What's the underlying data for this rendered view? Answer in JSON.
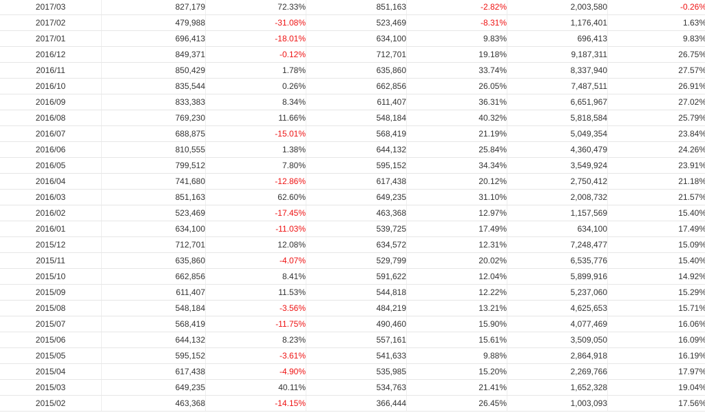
{
  "colors": {
    "negative": "#ee1111",
    "text": "#333333",
    "border": "#e6e6e6"
  },
  "rows": [
    [
      "2017/03",
      "827,179",
      "72.33%",
      "851,163",
      "-2.82%",
      "2,003,580",
      "-0.26%"
    ],
    [
      "2017/02",
      "479,988",
      "-31.08%",
      "523,469",
      "-8.31%",
      "1,176,401",
      "1.63%"
    ],
    [
      "2017/01",
      "696,413",
      "-18.01%",
      "634,100",
      "9.83%",
      "696,413",
      "9.83%"
    ],
    [
      "2016/12",
      "849,371",
      "-0.12%",
      "712,701",
      "19.18%",
      "9,187,311",
      "26.75%"
    ],
    [
      "2016/11",
      "850,429",
      "1.78%",
      "635,860",
      "33.74%",
      "8,337,940",
      "27.57%"
    ],
    [
      "2016/10",
      "835,544",
      "0.26%",
      "662,856",
      "26.05%",
      "7,487,511",
      "26.91%"
    ],
    [
      "2016/09",
      "833,383",
      "8.34%",
      "611,407",
      "36.31%",
      "6,651,967",
      "27.02%"
    ],
    [
      "2016/08",
      "769,230",
      "11.66%",
      "548,184",
      "40.32%",
      "5,818,584",
      "25.79%"
    ],
    [
      "2016/07",
      "688,875",
      "-15.01%",
      "568,419",
      "21.19%",
      "5,049,354",
      "23.84%"
    ],
    [
      "2016/06",
      "810,555",
      "1.38%",
      "644,132",
      "25.84%",
      "4,360,479",
      "24.26%"
    ],
    [
      "2016/05",
      "799,512",
      "7.80%",
      "595,152",
      "34.34%",
      "3,549,924",
      "23.91%"
    ],
    [
      "2016/04",
      "741,680",
      "-12.86%",
      "617,438",
      "20.12%",
      "2,750,412",
      "21.18%"
    ],
    [
      "2016/03",
      "851,163",
      "62.60%",
      "649,235",
      "31.10%",
      "2,008,732",
      "21.57%"
    ],
    [
      "2016/02",
      "523,469",
      "-17.45%",
      "463,368",
      "12.97%",
      "1,157,569",
      "15.40%"
    ],
    [
      "2016/01",
      "634,100",
      "-11.03%",
      "539,725",
      "17.49%",
      "634,100",
      "17.49%"
    ],
    [
      "2015/12",
      "712,701",
      "12.08%",
      "634,572",
      "12.31%",
      "7,248,477",
      "15.09%"
    ],
    [
      "2015/11",
      "635,860",
      "-4.07%",
      "529,799",
      "20.02%",
      "6,535,776",
      "15.40%"
    ],
    [
      "2015/10",
      "662,856",
      "8.41%",
      "591,622",
      "12.04%",
      "5,899,916",
      "14.92%"
    ],
    [
      "2015/09",
      "611,407",
      "11.53%",
      "544,818",
      "12.22%",
      "5,237,060",
      "15.29%"
    ],
    [
      "2015/08",
      "548,184",
      "-3.56%",
      "484,219",
      "13.21%",
      "4,625,653",
      "15.71%"
    ],
    [
      "2015/07",
      "568,419",
      "-11.75%",
      "490,460",
      "15.90%",
      "4,077,469",
      "16.06%"
    ],
    [
      "2015/06",
      "644,132",
      "8.23%",
      "557,161",
      "15.61%",
      "3,509,050",
      "16.09%"
    ],
    [
      "2015/05",
      "595,152",
      "-3.61%",
      "541,633",
      "9.88%",
      "2,864,918",
      "16.19%"
    ],
    [
      "2015/04",
      "617,438",
      "-4.90%",
      "535,985",
      "15.20%",
      "2,269,766",
      "17.97%"
    ],
    [
      "2015/03",
      "649,235",
      "40.11%",
      "534,763",
      "21.41%",
      "1,652,328",
      "19.04%"
    ],
    [
      "2015/02",
      "463,368",
      "-14.15%",
      "366,444",
      "26.45%",
      "1,003,093",
      "17.56%"
    ]
  ]
}
